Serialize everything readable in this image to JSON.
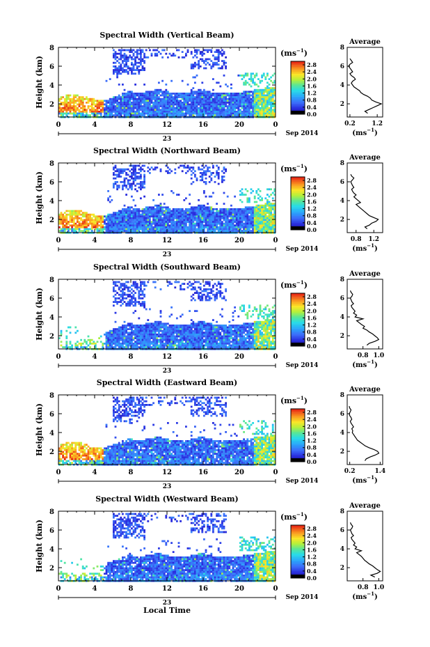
{
  "figure": {
    "date_label": "Sep 2014",
    "xlabel_bottom": "Local Time",
    "day_label": "23",
    "height_label": "Height (km)",
    "units": "(ms",
    "units_exp": "−1",
    "units_close": ")",
    "average_title": "Average"
  },
  "chart_data": [
    {
      "type": "heatmap",
      "title": "Spectral Width (Vertical Beam)",
      "xlabel": "",
      "ylabel": "Height (km)",
      "x_ticks": [
        "0",
        "4",
        "8",
        "12",
        "16",
        "20",
        "0"
      ],
      "y_ticks": [
        "2",
        "4",
        "6",
        "8"
      ],
      "xlim": [
        0,
        24
      ],
      "ylim": [
        0.6,
        8
      ],
      "colorbar": {
        "ticks": [
          "0.0",
          "0.4",
          "0.8",
          "1.2",
          "1.6",
          "2.0",
          "2.4",
          "2.8"
        ],
        "range": [
          0,
          3.0
        ],
        "units": "(ms-1)"
      },
      "profile": {
        "title": "Average",
        "xlim": [
          0.1,
          1.4
        ],
        "x_ticks": [
          "0.2",
          "1.2"
        ],
        "y_ticks": [
          "2",
          "4",
          "6",
          "8"
        ],
        "heights": [
          1.0,
          1.2,
          1.4,
          1.6,
          1.8,
          2.0,
          2.2,
          2.4,
          2.6,
          2.8,
          3.0,
          3.2,
          3.4,
          3.6,
          3.8,
          4.0,
          4.2,
          4.4,
          4.6,
          4.8,
          5.0,
          5.2,
          5.4,
          5.6,
          5.8,
          6.0,
          6.2,
          6.4,
          6.6,
          6.8
        ],
        "values": [
          0.85,
          0.75,
          0.9,
          1.05,
          1.2,
          1.35,
          1.15,
          1.0,
          0.95,
          0.85,
          0.7,
          0.6,
          0.55,
          0.45,
          0.35,
          0.3,
          0.25,
          0.3,
          0.4,
          0.35,
          0.25,
          0.2,
          0.3,
          0.25,
          0.2,
          0.15,
          0.2,
          0.3,
          0.25,
          0.2
        ]
      }
    },
    {
      "type": "heatmap",
      "title": "Spectral Width (Northward Beam)",
      "xlabel": "",
      "ylabel": "Height (km)",
      "x_ticks": [
        "0",
        "4",
        "8",
        "12",
        "16",
        "20",
        "0"
      ],
      "y_ticks": [
        "2",
        "4",
        "6",
        "8"
      ],
      "xlim": [
        0,
        24
      ],
      "ylim": [
        0.6,
        8
      ],
      "colorbar": {
        "ticks": [
          "0.0",
          "0.4",
          "0.8",
          "1.2",
          "1.6",
          "2.0",
          "2.4",
          "2.8"
        ],
        "range": [
          0,
          3.0
        ],
        "units": "(ms-1)"
      },
      "profile": {
        "title": "Average",
        "xlim": [
          0.6,
          1.4
        ],
        "x_ticks": [
          "0.8",
          "1.2"
        ],
        "y_ticks": [
          "2",
          "4",
          "6",
          "8"
        ],
        "heights": [
          1.0,
          1.2,
          1.4,
          1.6,
          1.8,
          2.0,
          2.2,
          2.4,
          2.6,
          2.8,
          3.0,
          3.2,
          3.4,
          3.6,
          3.8,
          4.0,
          4.2,
          4.4,
          4.6,
          4.8,
          5.0,
          5.2,
          5.4,
          5.6,
          5.8,
          6.0,
          6.2,
          6.4,
          6.6,
          6.8
        ],
        "values": [
          1.05,
          1.0,
          1.1,
          1.15,
          1.25,
          1.3,
          1.2,
          1.1,
          1.05,
          1.0,
          0.95,
          0.9,
          0.85,
          0.8,
          0.9,
          0.85,
          0.8,
          0.75,
          0.8,
          0.75,
          0.72,
          0.7,
          0.75,
          0.72,
          0.7,
          0.68,
          0.72,
          0.75,
          0.7,
          0.68
        ]
      }
    },
    {
      "type": "heatmap",
      "title": "Spectral Width (Southward Beam)",
      "xlabel": "",
      "ylabel": "Height (km)",
      "x_ticks": [
        "0",
        "4",
        "8",
        "12",
        "16",
        "20",
        "0"
      ],
      "y_ticks": [
        "2",
        "4",
        "6",
        "8"
      ],
      "xlim": [
        0,
        24
      ],
      "ylim": [
        0.6,
        8
      ],
      "colorbar": {
        "ticks": [
          "0.0",
          "0.4",
          "0.8",
          "1.2",
          "1.6",
          "2.0",
          "2.4",
          "2.8"
        ],
        "range": [
          0,
          3.0
        ],
        "units": "(ms-1)"
      },
      "profile": {
        "title": "Average",
        "xlim": [
          0.6,
          1.05
        ],
        "x_ticks": [
          "0.8",
          "1.0"
        ],
        "y_ticks": [
          "2",
          "4",
          "6",
          "8"
        ],
        "heights": [
          1.0,
          1.2,
          1.4,
          1.6,
          1.8,
          2.0,
          2.2,
          2.4,
          2.6,
          2.8,
          3.0,
          3.2,
          3.4,
          3.6,
          3.8,
          4.0,
          4.2,
          4.4,
          4.6,
          4.8,
          5.0,
          5.2,
          5.4,
          5.6,
          5.8,
          6.0,
          6.2,
          6.4,
          6.6,
          6.8
        ],
        "values": [
          0.85,
          0.88,
          0.95,
          1.0,
          0.98,
          0.95,
          0.92,
          0.88,
          0.85,
          0.8,
          0.82,
          0.78,
          0.75,
          0.72,
          0.8,
          0.7,
          0.72,
          0.68,
          0.7,
          0.68,
          0.66,
          0.65,
          0.68,
          0.66,
          0.65,
          0.64,
          0.66,
          0.67,
          0.65,
          0.64
        ]
      }
    },
    {
      "type": "heatmap",
      "title": "Spectral Width (Eastward Beam)",
      "xlabel": "",
      "ylabel": "Height (km)",
      "x_ticks": [
        "0",
        "4",
        "8",
        "12",
        "16",
        "20",
        "0"
      ],
      "y_ticks": [
        "2",
        "4",
        "6",
        "8"
      ],
      "xlim": [
        0,
        24
      ],
      "ylim": [
        0.6,
        8
      ],
      "colorbar": {
        "ticks": [
          "0.0",
          "0.4",
          "0.8",
          "1.2",
          "1.6",
          "2.0",
          "2.4",
          "2.8"
        ],
        "range": [
          0,
          3.0
        ],
        "units": "(ms-1)"
      },
      "profile": {
        "title": "Average",
        "xlim": [
          0.1,
          1.5
        ],
        "x_ticks": [
          "0.2",
          "1.4"
        ],
        "y_ticks": [
          "2",
          "4",
          "6",
          "8"
        ],
        "heights": [
          1.0,
          1.2,
          1.4,
          1.6,
          1.8,
          2.0,
          2.2,
          2.4,
          2.6,
          2.8,
          3.0,
          3.2,
          3.4,
          3.6,
          3.8,
          4.0,
          4.2,
          4.4,
          4.6,
          4.8,
          5.0,
          5.2,
          5.4,
          5.6,
          5.8,
          6.0,
          6.2,
          6.4,
          6.6,
          6.8
        ],
        "values": [
          0.8,
          0.85,
          1.0,
          1.2,
          1.35,
          1.3,
          1.15,
          0.95,
          0.8,
          0.7,
          0.6,
          0.5,
          0.45,
          0.4,
          0.35,
          0.3,
          0.32,
          0.28,
          0.35,
          0.3,
          0.25,
          0.22,
          0.28,
          0.25,
          0.2,
          0.18,
          0.22,
          0.25,
          0.2,
          0.18
        ]
      }
    },
    {
      "type": "heatmap",
      "title": "Spectral Width (Westward Beam)",
      "xlabel": "Local Time",
      "ylabel": "Height (km)",
      "x_ticks": [
        "0",
        "4",
        "8",
        "12",
        "16",
        "20",
        "0"
      ],
      "y_ticks": [
        "2",
        "4",
        "6",
        "8"
      ],
      "xlim": [
        0,
        24
      ],
      "ylim": [
        0.6,
        8
      ],
      "colorbar": {
        "ticks": [
          "0.0",
          "0.4",
          "0.8",
          "1.2",
          "1.6",
          "2.0",
          "2.4",
          "2.8"
        ],
        "range": [
          0,
          3.0
        ],
        "units": "(ms-1)"
      },
      "profile": {
        "title": "Average",
        "xlim": [
          0.6,
          1.05
        ],
        "x_ticks": [
          "0.8",
          "1.0"
        ],
        "y_ticks": [
          "2",
          "4",
          "6",
          "8"
        ],
        "heights": [
          1.0,
          1.2,
          1.4,
          1.6,
          1.8,
          2.0,
          2.2,
          2.4,
          2.6,
          2.8,
          3.0,
          3.2,
          3.4,
          3.6,
          3.8,
          4.0,
          4.2,
          4.4,
          4.6,
          4.8,
          5.0,
          5.2,
          5.4,
          5.6,
          5.8,
          6.0,
          6.2,
          6.4,
          6.6,
          6.8
        ],
        "values": [
          0.95,
          0.9,
          0.98,
          1.02,
          0.98,
          0.95,
          0.92,
          0.88,
          0.85,
          0.82,
          0.8,
          0.78,
          0.75,
          0.72,
          0.78,
          0.7,
          0.72,
          0.68,
          0.7,
          0.68,
          0.66,
          0.65,
          0.68,
          0.66,
          0.65,
          0.64,
          0.66,
          0.67,
          0.65,
          0.64
        ]
      }
    }
  ]
}
